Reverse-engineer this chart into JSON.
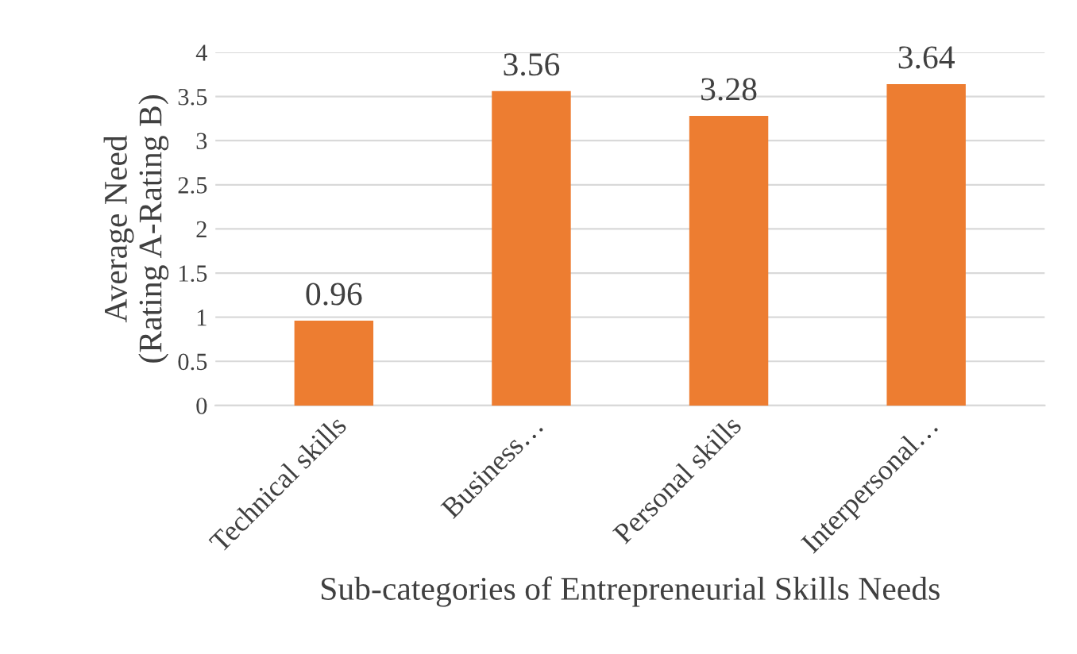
{
  "chart_data": {
    "type": "bar",
    "xlabel": "Sub-categories of Entrepreneurial Skills Needs",
    "ylabel": "Average Need\n(Rating A-Rating B)",
    "categories": [
      "Technical skills",
      "Business…",
      "Personal skills",
      "Interpersonal…"
    ],
    "values": [
      0.96,
      3.56,
      3.28,
      3.64
    ],
    "color": "#ed7d31",
    "data_labels": true,
    "ylim": [
      0,
      4
    ],
    "yticks": [
      0,
      0.5,
      1,
      1.5,
      2,
      2.5,
      3,
      3.5,
      4
    ],
    "grid": "y",
    "legend": false
  }
}
